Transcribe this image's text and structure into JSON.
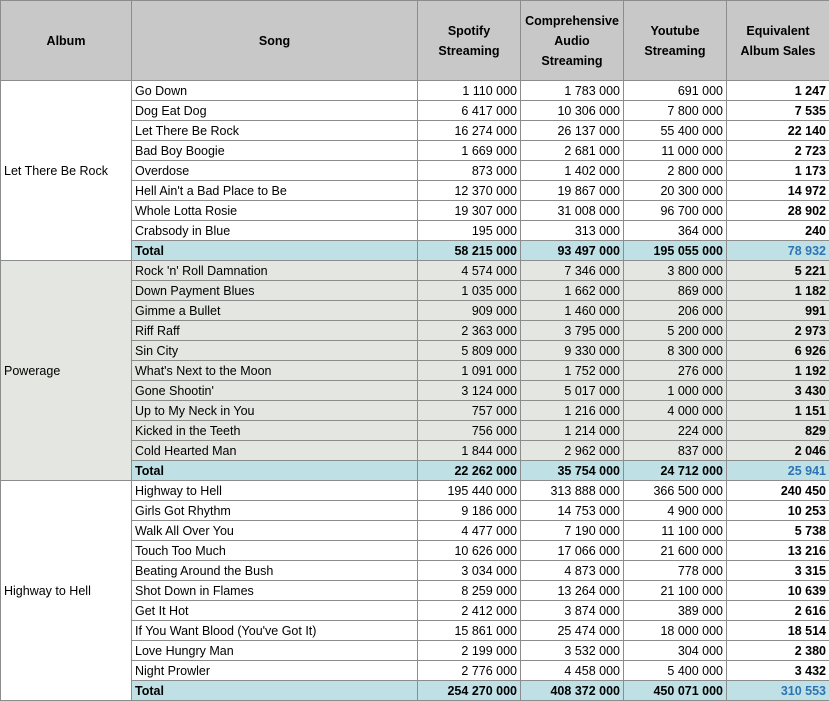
{
  "headers": {
    "album": "Album",
    "song": "Song",
    "spotify": "Spotify Streaming",
    "audio": "Comprehensive Audio Streaming",
    "youtube": "Youtube Streaming",
    "eas": "Equivalent Album Sales"
  },
  "albums": [
    {
      "name": "Let There Be Rock",
      "shaded": false,
      "songs": [
        {
          "song": "Go Down",
          "spotify": "1 110 000",
          "audio": "1 783 000",
          "youtube": "691 000",
          "eas": "1 247"
        },
        {
          "song": "Dog Eat Dog",
          "spotify": "6 417 000",
          "audio": "10 306 000",
          "youtube": "7 800 000",
          "eas": "7 535"
        },
        {
          "song": "Let There Be Rock",
          "spotify": "16 274 000",
          "audio": "26 137 000",
          "youtube": "55 400 000",
          "eas": "22 140"
        },
        {
          "song": "Bad Boy Boogie",
          "spotify": "1 669 000",
          "audio": "2 681 000",
          "youtube": "11 000 000",
          "eas": "2 723"
        },
        {
          "song": "Overdose",
          "spotify": "873 000",
          "audio": "1 402 000",
          "youtube": "2 800 000",
          "eas": "1 173"
        },
        {
          "song": "Hell Ain't a Bad Place to Be",
          "spotify": "12 370 000",
          "audio": "19 867 000",
          "youtube": "20 300 000",
          "eas": "14 972"
        },
        {
          "song": "Whole Lotta Rosie",
          "spotify": "19 307 000",
          "audio": "31 008 000",
          "youtube": "96 700 000",
          "eas": "28 902"
        },
        {
          "song": "Crabsody in Blue",
          "spotify": "195 000",
          "audio": "313 000",
          "youtube": "364 000",
          "eas": "240"
        }
      ],
      "total": {
        "label": "Total",
        "spotify": "58 215 000",
        "audio": "93 497 000",
        "youtube": "195 055 000",
        "eas": "78 932"
      }
    },
    {
      "name": "Powerage",
      "shaded": true,
      "songs": [
        {
          "song": "Rock 'n' Roll Damnation",
          "spotify": "4 574 000",
          "audio": "7 346 000",
          "youtube": "3 800 000",
          "eas": "5 221"
        },
        {
          "song": "Down Payment Blues",
          "spotify": "1 035 000",
          "audio": "1 662 000",
          "youtube": "869 000",
          "eas": "1 182"
        },
        {
          "song": "Gimme a Bullet",
          "spotify": "909 000",
          "audio": "1 460 000",
          "youtube": "206 000",
          "eas": "991"
        },
        {
          "song": "Riff Raff",
          "spotify": "2 363 000",
          "audio": "3 795 000",
          "youtube": "5 200 000",
          "eas": "2 973"
        },
        {
          "song": "Sin City",
          "spotify": "5 809 000",
          "audio": "9 330 000",
          "youtube": "8 300 000",
          "eas": "6 926"
        },
        {
          "song": "What's Next to the Moon",
          "spotify": "1 091 000",
          "audio": "1 752 000",
          "youtube": "276 000",
          "eas": "1 192"
        },
        {
          "song": "Gone Shootin'",
          "spotify": "3 124 000",
          "audio": "5 017 000",
          "youtube": "1 000 000",
          "eas": "3 430"
        },
        {
          "song": "Up to My Neck in You",
          "spotify": "757 000",
          "audio": "1 216 000",
          "youtube": "4 000 000",
          "eas": "1 151"
        },
        {
          "song": "Kicked in the Teeth",
          "spotify": "756 000",
          "audio": "1 214 000",
          "youtube": "224 000",
          "eas": "829"
        },
        {
          "song": "Cold Hearted Man",
          "spotify": "1 844 000",
          "audio": "2 962 000",
          "youtube": "837 000",
          "eas": "2 046"
        }
      ],
      "total": {
        "label": "Total",
        "spotify": "22 262 000",
        "audio": "35 754 000",
        "youtube": "24 712 000",
        "eas": "25 941"
      }
    },
    {
      "name": "Highway to Hell",
      "shaded": false,
      "songs": [
        {
          "song": "Highway to Hell",
          "spotify": "195 440 000",
          "audio": "313 888 000",
          "youtube": "366 500 000",
          "eas": "240 450"
        },
        {
          "song": "Girls Got Rhythm",
          "spotify": "9 186 000",
          "audio": "14 753 000",
          "youtube": "4 900 000",
          "eas": "10 253"
        },
        {
          "song": "Walk All Over You",
          "spotify": "4 477 000",
          "audio": "7 190 000",
          "youtube": "11 100 000",
          "eas": "5 738"
        },
        {
          "song": "Touch Too Much",
          "spotify": "10 626 000",
          "audio": "17 066 000",
          "youtube": "21 600 000",
          "eas": "13 216"
        },
        {
          "song": "Beating Around the Bush",
          "spotify": "3 034 000",
          "audio": "4 873 000",
          "youtube": "778 000",
          "eas": "3 315"
        },
        {
          "song": "Shot Down in Flames",
          "spotify": "8 259 000",
          "audio": "13 264 000",
          "youtube": "21 100 000",
          "eas": "10 639"
        },
        {
          "song": "Get It Hot",
          "spotify": "2 412 000",
          "audio": "3 874 000",
          "youtube": "389 000",
          "eas": "2 616"
        },
        {
          "song": "If You Want Blood (You've Got It)",
          "spotify": "15 861 000",
          "audio": "25 474 000",
          "youtube": "18 000 000",
          "eas": "18 514"
        },
        {
          "song": "Love Hungry Man",
          "spotify": "2 199 000",
          "audio": "3 532 000",
          "youtube": "304 000",
          "eas": "2 380"
        },
        {
          "song": "Night Prowler",
          "spotify": "2 776 000",
          "audio": "4 458 000",
          "youtube": "5 400 000",
          "eas": "3 432"
        }
      ],
      "total": {
        "label": "Total",
        "spotify": "254 270 000",
        "audio": "408 372 000",
        "youtube": "450 071 000",
        "eas": "310 553"
      }
    }
  ]
}
